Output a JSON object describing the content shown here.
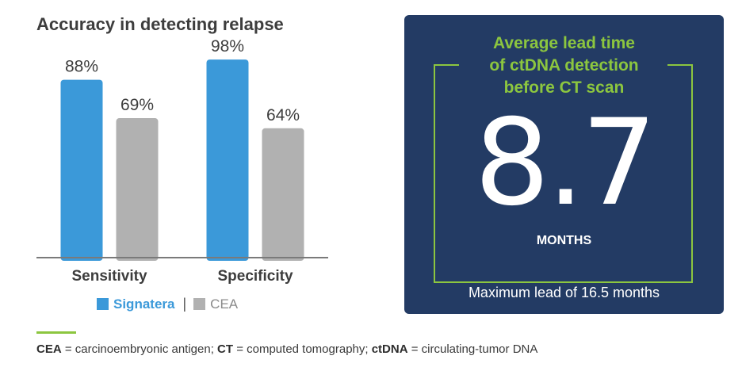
{
  "chart_data": {
    "type": "bar",
    "title": "Accuracy in detecting relapse",
    "categories": [
      "Sensitivity",
      "Specificity"
    ],
    "series": [
      {
        "name": "Signatera",
        "values": [
          88,
          98
        ],
        "color": "#3b99d9"
      },
      {
        "name": "CEA",
        "values": [
          69,
          64
        ],
        "color": "#b1b1b1"
      }
    ],
    "value_suffix": "%",
    "ylim": [
      0,
      100
    ],
    "grid": false,
    "legend": "bottom",
    "legend_separator": "|"
  },
  "lead_time": {
    "title_lines": [
      "Average lead time",
      "of ctDNA detection",
      "before CT scan"
    ],
    "value": "8.7",
    "unit": "MONTHS",
    "max_lead": "Maximum lead of 16.5 months",
    "accent_color": "#8cc63f",
    "background_color": "#233b64"
  },
  "footnote": {
    "entries": [
      {
        "abbr": "CEA",
        "definition": " = carcinoembryonic antigen; "
      },
      {
        "abbr": "CT",
        "definition": " = computed tomography; "
      },
      {
        "abbr": "ctDNA",
        "definition": " = circulating-tumor DNA"
      }
    ]
  }
}
